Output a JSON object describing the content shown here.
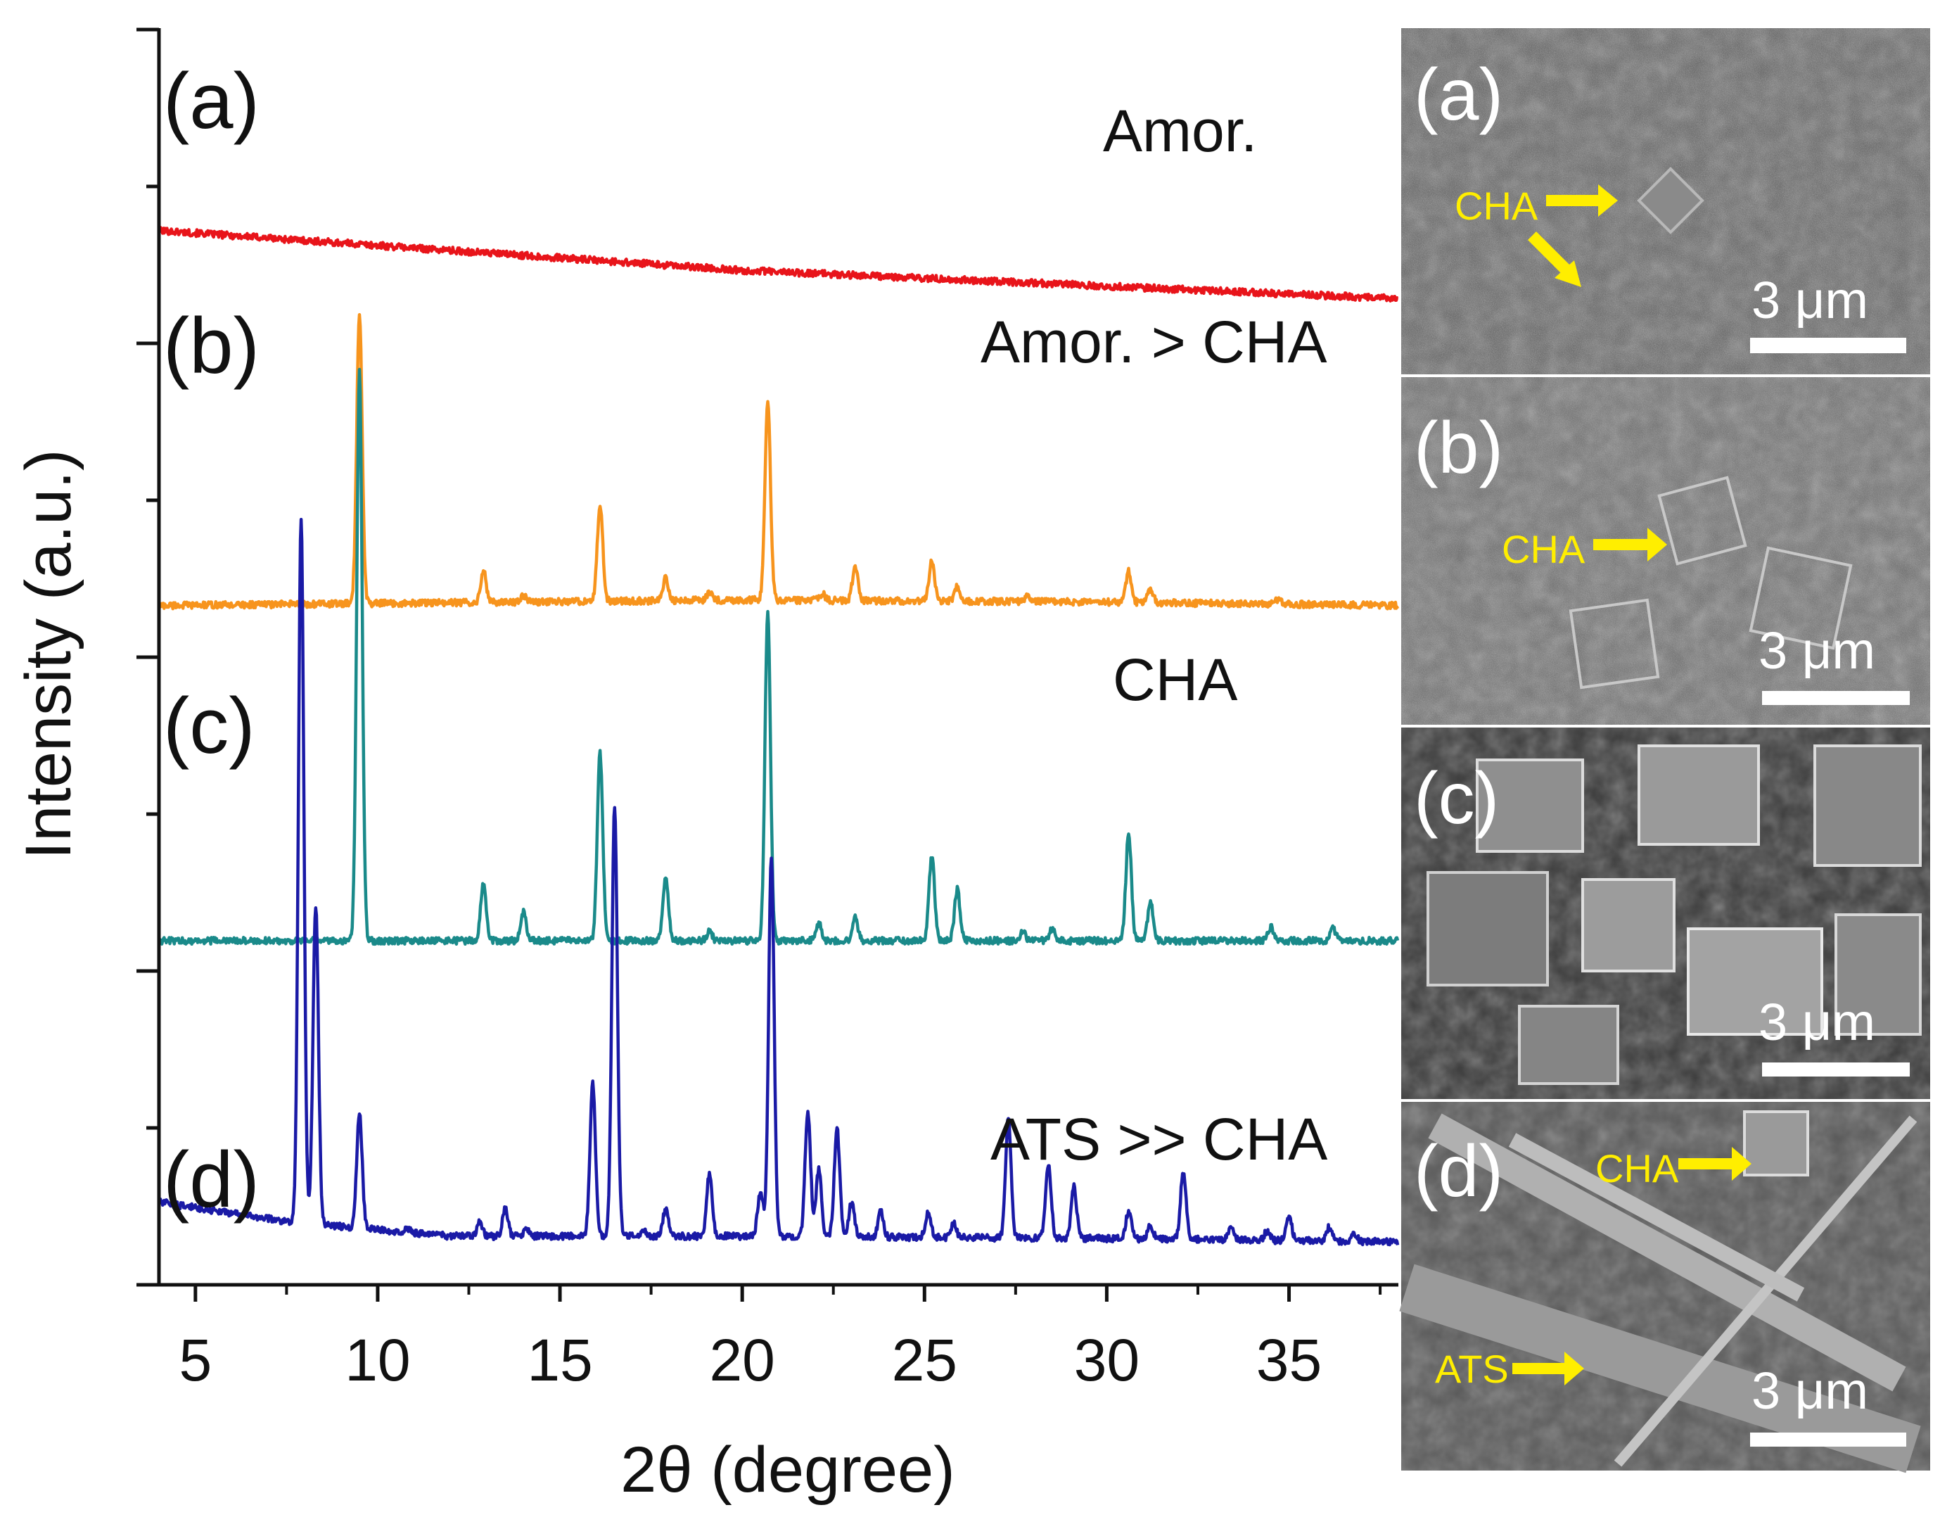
{
  "chart_data": {
    "type": "line",
    "title": "",
    "xlabel": "2θ (degree)",
    "ylabel": "Intensity (a.u.)",
    "xlim": [
      4,
      38
    ],
    "xticks": [
      "5",
      "10",
      "15",
      "20",
      "25",
      "30",
      "35"
    ],
    "xtick_values": [
      5,
      10,
      15,
      20,
      25,
      30,
      35
    ],
    "y_tick_labels_shown": false,
    "series": [
      {
        "name": "(a)",
        "phase_label": "Amor.",
        "color": "#e8141a",
        "baseline": 0.83,
        "background": [
          [
            4,
            0.06
          ],
          [
            20,
            0.025
          ],
          [
            38,
            0.0
          ]
        ],
        "peaks": []
      },
      {
        "name": "(b)",
        "phase_label": "Amor. > CHA",
        "color": "#f7941d",
        "baseline": 0.56,
        "background": [
          [
            4,
            0.0
          ],
          [
            20,
            0.005
          ],
          [
            30,
            0.003
          ],
          [
            38,
            0.0
          ]
        ],
        "peaks": [
          [
            9.5,
            0.255
          ],
          [
            12.9,
            0.028
          ],
          [
            14.0,
            0.006
          ],
          [
            16.1,
            0.085
          ],
          [
            17.9,
            0.02
          ],
          [
            19.1,
            0.007
          ],
          [
            20.7,
            0.175
          ],
          [
            22.2,
            0.006
          ],
          [
            23.1,
            0.03
          ],
          [
            25.2,
            0.035
          ],
          [
            25.9,
            0.013
          ],
          [
            27.8,
            0.004
          ],
          [
            30.6,
            0.027
          ],
          [
            31.2,
            0.012
          ],
          [
            34.7,
            0.004
          ]
        ]
      },
      {
        "name": "(c)",
        "phase_label": "CHA",
        "color": "#1a8a8a",
        "baseline": 0.265,
        "background": [
          [
            4,
            0.0
          ],
          [
            38,
            0.0
          ]
        ],
        "peaks": [
          [
            9.5,
            0.5
          ],
          [
            12.9,
            0.05
          ],
          [
            14.0,
            0.025
          ],
          [
            16.1,
            0.165
          ],
          [
            17.9,
            0.055
          ],
          [
            19.1,
            0.008
          ],
          [
            20.7,
            0.29
          ],
          [
            22.1,
            0.015
          ],
          [
            23.1,
            0.02
          ],
          [
            25.2,
            0.075
          ],
          [
            25.9,
            0.045
          ],
          [
            27.7,
            0.008
          ],
          [
            28.5,
            0.01
          ],
          [
            30.6,
            0.095
          ],
          [
            31.2,
            0.035
          ],
          [
            34.5,
            0.012
          ],
          [
            36.2,
            0.012
          ]
        ]
      },
      {
        "name": "(d)",
        "phase_label": "ATS >> CHA",
        "color": "#1a1aa6",
        "baseline": 0.0,
        "background": [
          [
            4,
            0.035
          ],
          [
            7.5,
            0.018
          ],
          [
            12,
            0.005
          ],
          [
            20,
            0.005
          ],
          [
            30,
            0.003
          ],
          [
            38,
            0.0
          ]
        ],
        "peaks": [
          [
            7.9,
            0.62
          ],
          [
            8.3,
            0.28
          ],
          [
            9.5,
            0.1
          ],
          [
            10.8,
            0.004
          ],
          [
            12.8,
            0.012
          ],
          [
            13.5,
            0.024
          ],
          [
            14.1,
            0.006
          ],
          [
            15.9,
            0.135
          ],
          [
            16.5,
            0.38
          ],
          [
            17.3,
            0.006
          ],
          [
            17.9,
            0.024
          ],
          [
            19.1,
            0.055
          ],
          [
            20.5,
            0.04
          ],
          [
            20.8,
            0.335
          ],
          [
            21.8,
            0.11
          ],
          [
            22.1,
            0.06
          ],
          [
            22.6,
            0.095
          ],
          [
            23.0,
            0.03
          ],
          [
            23.8,
            0.022
          ],
          [
            25.1,
            0.022
          ],
          [
            25.8,
            0.012
          ],
          [
            27.3,
            0.105
          ],
          [
            28.4,
            0.065
          ],
          [
            29.1,
            0.045
          ],
          [
            30.6,
            0.024
          ],
          [
            31.2,
            0.012
          ],
          [
            32.1,
            0.06
          ],
          [
            33.4,
            0.01
          ],
          [
            34.4,
            0.008
          ],
          [
            35.0,
            0.022
          ],
          [
            36.1,
            0.012
          ],
          [
            36.8,
            0.006
          ]
        ]
      }
    ],
    "annotations": [
      "(a)",
      "(b)",
      "(c)",
      "(d)"
    ]
  },
  "sem_panels": [
    {
      "panel_label": "(a)",
      "scale_bar": "3 μm",
      "markers": [
        "CHA"
      ]
    },
    {
      "panel_label": "(b)",
      "scale_bar": "3 μm",
      "markers": [
        "CHA"
      ]
    },
    {
      "panel_label": "(c)",
      "scale_bar": "3 μm",
      "markers": []
    },
    {
      "panel_label": "(d)",
      "scale_bar": "3 μm",
      "markers": [
        "CHA",
        "ATS"
      ]
    }
  ],
  "colors": {
    "axis": "#111111",
    "marker": "#ffee00",
    "scale_bar": "#ffffff",
    "sem_text": "#ffffff"
  }
}
